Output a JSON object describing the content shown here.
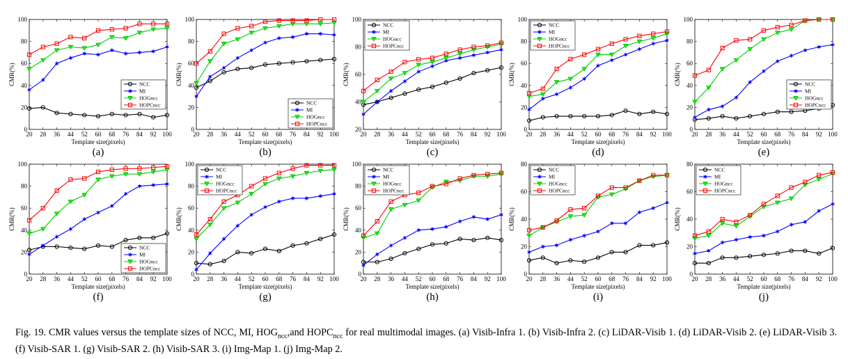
{
  "figure": {
    "caption_prefix": "Fig. 19.",
    "caption_parts": [
      {
        "t": "   CMR values versus the template sizes of NCC, MI, HOG"
      },
      {
        "sub": "ncc"
      },
      {
        "t": ",and HOPC"
      },
      {
        "sub": "ncc"
      },
      {
        "t": " for real multimodal images. (a) Visib-Infra 1. (b) Visib-Infra 2. (c) LiDAR-Visib 1. (d) LiDAR-Visib 2. (e) LiDAR-Visib 3. (f) Visib-SAR 1. (g) Visib-SAR 2. (h) Visib-SAR 3. (i) Img-Map 1. (j) Img-Map 2."
      }
    ],
    "colors": {
      "NCC": "#000000",
      "MI": "#0000ff",
      "HOGncc": "#00cc00",
      "HOPCncc": "#ff0000"
    }
  },
  "chart_data": [
    {
      "type": "line",
      "panel_label": "(a)",
      "xlabel": "Template size(pixels)",
      "ylabel": "CMR(%)",
      "x": [
        20,
        28,
        36,
        44,
        52,
        60,
        68,
        76,
        84,
        92,
        100
      ],
      "xlim": [
        20,
        100
      ],
      "ylim": [
        0,
        100
      ],
      "legend": "center-right",
      "series": [
        {
          "name": "NCC",
          "values": [
            19,
            20,
            15,
            14,
            13,
            12,
            14,
            13,
            14,
            11,
            13
          ]
        },
        {
          "name": "MI",
          "values": [
            36,
            45,
            60,
            65,
            69,
            68,
            72,
            69,
            70,
            71,
            75
          ]
        },
        {
          "name": "HOGncc",
          "values": [
            55,
            63,
            72,
            75,
            74,
            77,
            84,
            83,
            88,
            91,
            92
          ]
        },
        {
          "name": "HOPCncc",
          "values": [
            68,
            75,
            78,
            84,
            83,
            90,
            91,
            92,
            96,
            96,
            96
          ]
        }
      ]
    },
    {
      "type": "line",
      "panel_label": "(b)",
      "xlabel": "Template size(pixels)",
      "ylabel": "CMR(%)",
      "x": [
        20,
        28,
        36,
        44,
        52,
        60,
        68,
        76,
        84,
        92,
        100
      ],
      "xlim": [
        20,
        100
      ],
      "ylim": [
        0,
        100
      ],
      "legend": "bottom-right",
      "series": [
        {
          "name": "NCC",
          "values": [
            38,
            44,
            52,
            55,
            56,
            59,
            60,
            61,
            62,
            63,
            64
          ]
        },
        {
          "name": "MI",
          "values": [
            30,
            48,
            56,
            65,
            72,
            79,
            83,
            84,
            87,
            87,
            86
          ]
        },
        {
          "name": "HOGncc",
          "values": [
            42,
            62,
            78,
            82,
            88,
            92,
            94,
            96,
            96,
            96,
            97
          ]
        },
        {
          "name": "HOPCncc",
          "values": [
            60,
            71,
            87,
            92,
            94,
            98,
            99,
            99,
            99,
            100,
            100
          ]
        }
      ]
    },
    {
      "type": "line",
      "panel_label": "(c)",
      "xlabel": "Template size(pixels)",
      "ylabel": "CMR(%)",
      "x": [
        20,
        28,
        36,
        44,
        52,
        60,
        68,
        76,
        84,
        92,
        100
      ],
      "xlim": [
        20,
        100
      ],
      "ylim": [
        20,
        100
      ],
      "legend": "top-left",
      "series": [
        {
          "name": "NCC",
          "values": [
            38,
            40,
            43,
            46,
            49,
            51,
            54,
            57,
            61,
            63,
            65
          ]
        },
        {
          "name": "MI",
          "values": [
            31,
            40,
            48,
            55,
            62,
            66,
            70,
            72,
            74,
            76,
            78
          ]
        },
        {
          "name": "HOGncc",
          "values": [
            40,
            48,
            57,
            61,
            67,
            69,
            72,
            75,
            78,
            80,
            82
          ]
        },
        {
          "name": "HOPCncc",
          "values": [
            48,
            56,
            62,
            69,
            71,
            72,
            75,
            78,
            80,
            81,
            83
          ]
        }
      ]
    },
    {
      "type": "line",
      "panel_label": "(d)",
      "xlabel": "Template size(pixels)",
      "ylabel": "CMR(%)",
      "x": [
        20,
        28,
        36,
        44,
        52,
        60,
        68,
        76,
        84,
        92,
        100
      ],
      "xlim": [
        20,
        100
      ],
      "ylim": [
        0,
        100
      ],
      "legend": "top-left",
      "series": [
        {
          "name": "NCC",
          "values": [
            8,
            11,
            12,
            12,
            12,
            12,
            13,
            17,
            14,
            16,
            14
          ]
        },
        {
          "name": "MI",
          "values": [
            18,
            28,
            32,
            38,
            46,
            58,
            63,
            68,
            73,
            78,
            81
          ]
        },
        {
          "name": "HOGncc",
          "values": [
            30,
            32,
            43,
            46,
            55,
            68,
            68,
            76,
            80,
            83,
            87
          ]
        },
        {
          "name": "HOPCncc",
          "values": [
            33,
            37,
            55,
            64,
            68,
            73,
            78,
            82,
            85,
            87,
            89
          ]
        }
      ]
    },
    {
      "type": "line",
      "panel_label": "(e)",
      "xlabel": "Template size(pixels)",
      "ylabel": "CMR(%)",
      "x": [
        20,
        28,
        36,
        44,
        52,
        60,
        68,
        76,
        84,
        92,
        100
      ],
      "xlim": [
        20,
        100
      ],
      "ylim": [
        0,
        100
      ],
      "legend": "center-right",
      "series": [
        {
          "name": "NCC",
          "values": [
            9,
            10,
            12,
            10,
            12,
            14,
            16,
            16,
            17,
            19,
            22
          ]
        },
        {
          "name": "MI",
          "values": [
            11,
            18,
            21,
            29,
            43,
            53,
            62,
            67,
            72,
            75,
            77
          ]
        },
        {
          "name": "HOGncc",
          "values": [
            25,
            38,
            55,
            63,
            73,
            82,
            88,
            91,
            99,
            100,
            100
          ]
        },
        {
          "name": "HOPCncc",
          "values": [
            49,
            54,
            74,
            81,
            82,
            90,
            93,
            95,
            99,
            100,
            100
          ]
        }
      ]
    },
    {
      "type": "line",
      "panel_label": "(f)",
      "xlabel": "Template size(pixels)",
      "ylabel": "CMR(%)",
      "x": [
        20,
        28,
        36,
        44,
        52,
        60,
        68,
        76,
        84,
        92,
        100
      ],
      "xlim": [
        20,
        100
      ],
      "ylim": [
        0,
        100
      ],
      "legend": "bottom-right",
      "series": [
        {
          "name": "NCC",
          "values": [
            22,
            25,
            25,
            24,
            23,
            26,
            25,
            31,
            33,
            33,
            37
          ]
        },
        {
          "name": "MI",
          "values": [
            18,
            26,
            34,
            41,
            50,
            56,
            62,
            73,
            80,
            81,
            82
          ]
        },
        {
          "name": "HOGncc",
          "values": [
            37,
            41,
            55,
            66,
            72,
            86,
            89,
            91,
            91,
            93,
            95
          ]
        },
        {
          "name": "HOPCncc",
          "values": [
            49,
            60,
            76,
            86,
            87,
            93,
            95,
            96,
            96,
            97,
            98
          ]
        }
      ]
    },
    {
      "type": "line",
      "panel_label": "(g)",
      "xlabel": "Template size(pixels)",
      "ylabel": "CMR(%)",
      "x": [
        20,
        28,
        36,
        44,
        52,
        60,
        68,
        76,
        84,
        92,
        100
      ],
      "xlim": [
        20,
        100
      ],
      "ylim": [
        0,
        100
      ],
      "legend": "top-left",
      "series": [
        {
          "name": "NCC",
          "values": [
            10,
            9,
            12,
            20,
            19,
            23,
            21,
            26,
            28,
            32,
            36
          ]
        },
        {
          "name": "MI",
          "values": [
            4,
            19,
            32,
            44,
            54,
            61,
            66,
            69,
            69,
            71,
            73
          ]
        },
        {
          "name": "HOGncc",
          "values": [
            32,
            45,
            60,
            65,
            73,
            82,
            87,
            89,
            92,
            94,
            95
          ]
        },
        {
          "name": "HOPCncc",
          "values": [
            36,
            50,
            66,
            72,
            80,
            87,
            92,
            96,
            99,
            99,
            99
          ]
        }
      ]
    },
    {
      "type": "line",
      "panel_label": "(h)",
      "xlabel": "Template size(pixels)",
      "ylabel": "CMR(%)",
      "x": [
        20,
        28,
        36,
        44,
        52,
        60,
        68,
        76,
        84,
        92,
        100
      ],
      "xlim": [
        20,
        100
      ],
      "ylim": [
        0,
        100
      ],
      "legend": "top-left",
      "series": [
        {
          "name": "NCC",
          "values": [
            11,
            11,
            14,
            19,
            23,
            27,
            28,
            32,
            31,
            33,
            31
          ]
        },
        {
          "name": "MI",
          "values": [
            8,
            18,
            26,
            33,
            40,
            41,
            43,
            48,
            52,
            50,
            54
          ]
        },
        {
          "name": "HOGncc",
          "values": [
            33,
            37,
            59,
            63,
            67,
            79,
            84,
            85,
            89,
            89,
            91
          ]
        },
        {
          "name": "HOPCncc",
          "values": [
            35,
            48,
            66,
            72,
            74,
            80,
            82,
            87,
            90,
            91,
            92
          ]
        }
      ]
    },
    {
      "type": "line",
      "panel_label": "(i)",
      "xlabel": "Template size(pixels)",
      "ylabel": "CMR(%)",
      "x": [
        20,
        28,
        36,
        44,
        52,
        60,
        68,
        76,
        84,
        92,
        100
      ],
      "xlim": [
        20,
        100
      ],
      "ylim": [
        0,
        80
      ],
      "legend": "top-left",
      "series": [
        {
          "name": "NCC",
          "values": [
            10,
            12,
            8,
            10,
            9,
            12,
            16,
            16,
            21,
            21,
            23
          ]
        },
        {
          "name": "MI",
          "values": [
            16,
            20,
            21,
            25,
            28,
            31,
            37,
            37,
            45,
            48,
            52
          ]
        },
        {
          "name": "HOGncc",
          "values": [
            28,
            34,
            38,
            42,
            43,
            56,
            58,
            62,
            68,
            71,
            72
          ]
        },
        {
          "name": "HOPCncc",
          "values": [
            32,
            34,
            39,
            47,
            48,
            57,
            63,
            63,
            68,
            72,
            72
          ]
        }
      ]
    },
    {
      "type": "line",
      "panel_label": "(j)",
      "xlabel": "Template size(pixels)",
      "ylabel": "CMR(%)",
      "x": [
        20,
        28,
        36,
        44,
        52,
        60,
        68,
        76,
        84,
        92,
        100
      ],
      "xlim": [
        20,
        100
      ],
      "ylim": [
        0,
        80
      ],
      "legend": "top-left",
      "series": [
        {
          "name": "NCC",
          "values": [
            8,
            8,
            12,
            12,
            13,
            14,
            15,
            17,
            17,
            15,
            19
          ]
        },
        {
          "name": "MI",
          "values": [
            15,
            17,
            23,
            25,
            27,
            28,
            31,
            36,
            38,
            46,
            51
          ]
        },
        {
          "name": "HOGncc",
          "values": [
            26,
            28,
            37,
            35,
            42,
            49,
            52,
            55,
            65,
            69,
            73
          ]
        },
        {
          "name": "HOPCncc",
          "values": [
            28,
            31,
            40,
            38,
            43,
            51,
            57,
            63,
            67,
            72,
            74
          ]
        }
      ]
    }
  ]
}
